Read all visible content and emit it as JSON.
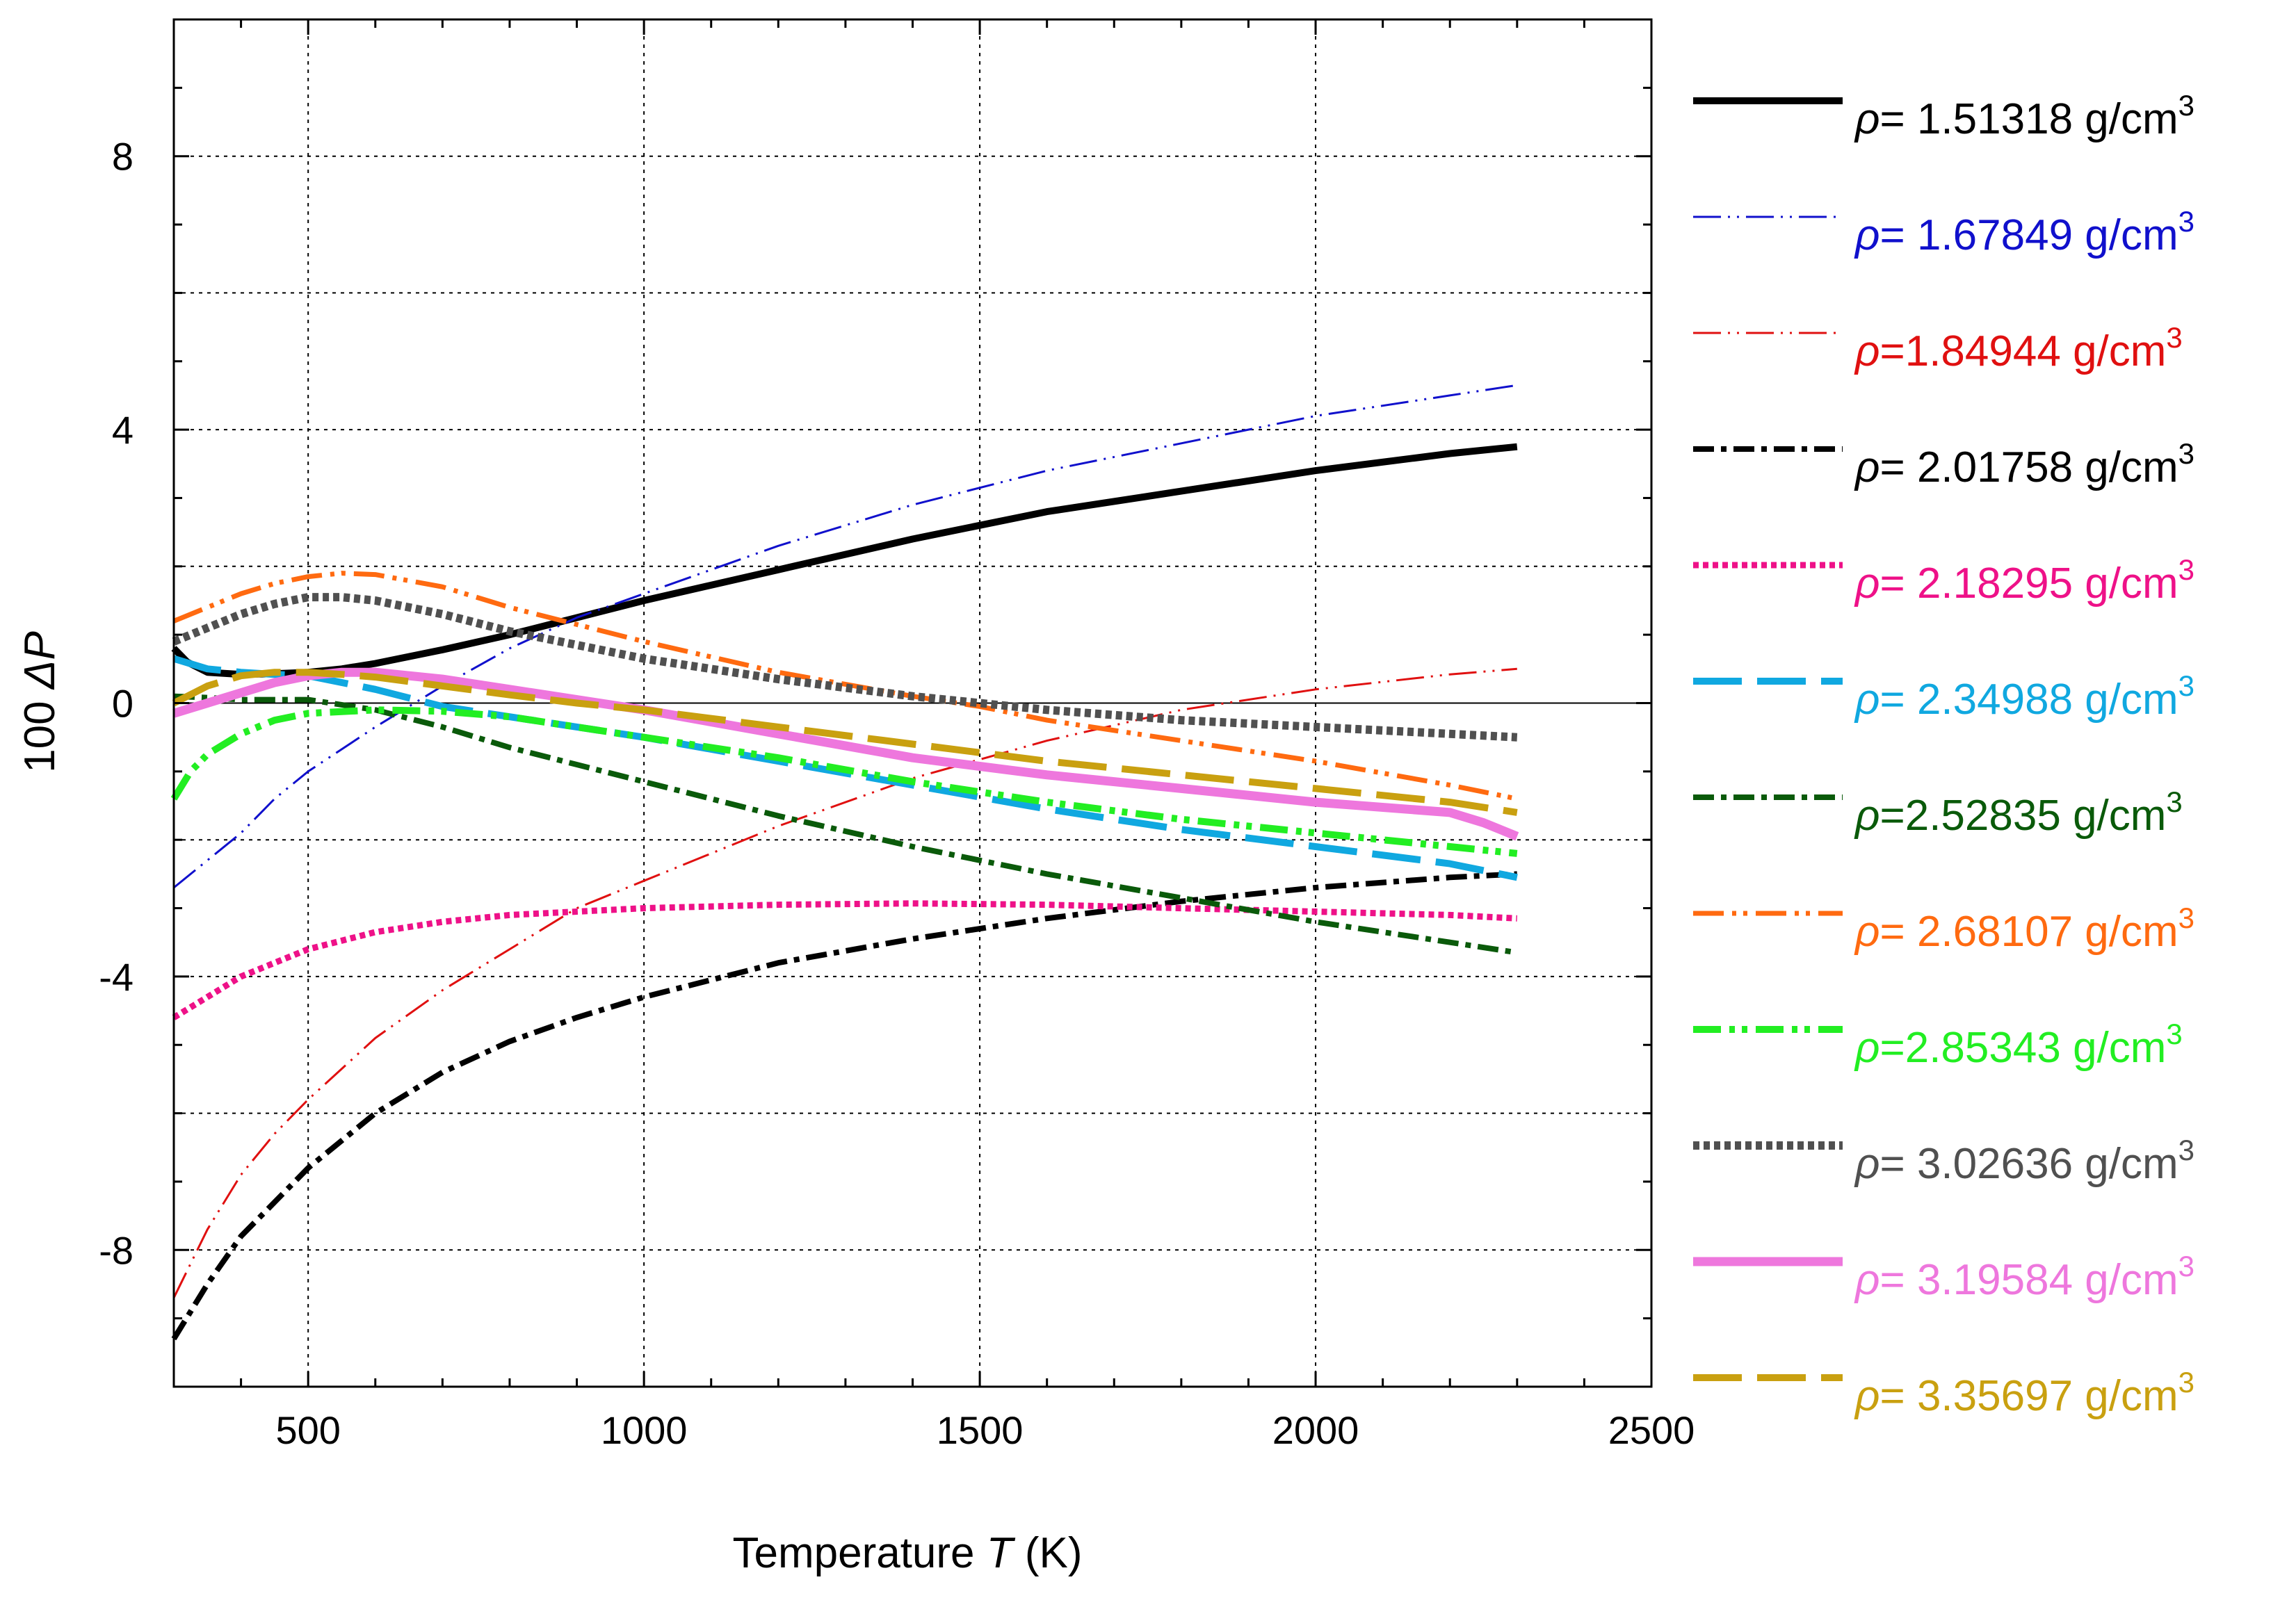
{
  "chart_data": {
    "type": "line",
    "title": "",
    "xlabel": {
      "prefix": "Temperature ",
      "var": "T",
      "suffix": " (K)"
    },
    "ylabel": {
      "prefix": "100 ",
      "var": "ΔP"
    },
    "xlim": [
      300,
      2500
    ],
    "ylim": [
      -10,
      10
    ],
    "xticks": [
      500,
      1000,
      1500,
      2000,
      2500
    ],
    "xtick_labels": [
      "500",
      "1000",
      "1500",
      "2000",
      "2500"
    ],
    "yticks": [
      -8,
      -4,
      0,
      4,
      8
    ],
    "ytick_labels": [
      "-8",
      "-4",
      "0",
      "4",
      "8"
    ],
    "grid": true,
    "legend_position": "right",
    "series": [
      {
        "name": "ρ = 1.51318 g/cm3",
        "symbol": "ρ",
        "label": "= 1.51318 g/cm",
        "sup": "3",
        "color": "#000000",
        "style": "solid",
        "x": [
          300,
          320,
          350,
          400,
          450,
          500,
          550,
          600,
          700,
          800,
          900,
          1000,
          1200,
          1400,
          1600,
          1800,
          2000,
          2200,
          2300
        ],
        "y": [
          0.8,
          0.6,
          0.45,
          0.42,
          0.43,
          0.45,
          0.5,
          0.58,
          0.78,
          1.0,
          1.25,
          1.5,
          1.95,
          2.4,
          2.8,
          3.1,
          3.4,
          3.65,
          3.75
        ]
      },
      {
        "name": "ρ = 1.67849 g/cm3",
        "symbol": "ρ",
        "label": "= 1.67849 g/cm",
        "sup": "3",
        "color": "#1010cc",
        "style": "dashdot-thin",
        "x": [
          300,
          350,
          400,
          450,
          500,
          600,
          700,
          800,
          900,
          1000,
          1200,
          1400,
          1600,
          1800,
          2000,
          2200,
          2300
        ],
        "y": [
          -2.7,
          -2.3,
          -1.9,
          -1.4,
          -1.0,
          -0.35,
          0.25,
          0.8,
          1.25,
          1.6,
          2.3,
          2.9,
          3.4,
          3.8,
          4.2,
          4.5,
          4.65
        ]
      },
      {
        "name": "ρ =1.84944 g/cm3",
        "symbol": "ρ",
        "label": "=1.84944 g/cm",
        "sup": "3",
        "color": "#e01010",
        "style": "dashdot-thin",
        "x": [
          300,
          350,
          400,
          450,
          500,
          600,
          700,
          800,
          900,
          1000,
          1200,
          1400,
          1600,
          1800,
          2000,
          2200,
          2300
        ],
        "y": [
          -8.7,
          -7.7,
          -6.9,
          -6.3,
          -5.8,
          -4.9,
          -4.2,
          -3.6,
          -3.0,
          -2.6,
          -1.8,
          -1.1,
          -0.55,
          -0.1,
          0.2,
          0.42,
          0.5
        ]
      },
      {
        "name": "ρ = 2.01758 g/cm3",
        "symbol": "ρ",
        "label": "= 2.01758 g/cm",
        "sup": "3",
        "color": "#000000",
        "style": "dashdot-thick",
        "x": [
          300,
          350,
          400,
          450,
          500,
          600,
          700,
          800,
          900,
          1000,
          1200,
          1400,
          1600,
          1800,
          2000,
          2200,
          2300
        ],
        "y": [
          -9.3,
          -8.5,
          -7.8,
          -7.3,
          -6.8,
          -6.0,
          -5.4,
          -4.95,
          -4.6,
          -4.3,
          -3.8,
          -3.45,
          -3.15,
          -2.9,
          -2.7,
          -2.55,
          -2.5
        ]
      },
      {
        "name": "ρ = 2.18295 g/cm3",
        "symbol": "ρ",
        "label": "= 2.18295 g/cm",
        "sup": "3",
        "color": "#ee1188",
        "style": "dotted",
        "x": [
          300,
          350,
          400,
          450,
          500,
          600,
          700,
          800,
          900,
          1000,
          1200,
          1400,
          1600,
          1800,
          2000,
          2200,
          2300
        ],
        "y": [
          -4.6,
          -4.3,
          -4.0,
          -3.8,
          -3.6,
          -3.35,
          -3.2,
          -3.1,
          -3.05,
          -3.0,
          -2.95,
          -2.93,
          -2.95,
          -3.0,
          -3.05,
          -3.1,
          -3.15
        ]
      },
      {
        "name": "ρ = 2.34988 g/cm3",
        "symbol": "ρ",
        "label": "= 2.34988 g/cm",
        "sup": "3",
        "color": "#10a8e0",
        "style": "longdash-thick",
        "x": [
          300,
          350,
          400,
          450,
          500,
          600,
          700,
          800,
          900,
          1000,
          1200,
          1400,
          1600,
          1800,
          2000,
          2200,
          2300
        ],
        "y": [
          0.65,
          0.5,
          0.45,
          0.42,
          0.4,
          0.2,
          -0.05,
          -0.2,
          -0.35,
          -0.5,
          -0.85,
          -1.2,
          -1.55,
          -1.85,
          -2.1,
          -2.35,
          -2.55
        ]
      },
      {
        "name": "ρ =2.52835 g/cm3",
        "symbol": "ρ",
        "label": "=2.52835 g/cm",
        "sup": "3",
        "color": "#0a5a0a",
        "style": "dashdot-thick",
        "x": [
          300,
          350,
          400,
          450,
          500,
          600,
          700,
          800,
          900,
          1000,
          1200,
          1400,
          1600,
          1800,
          2000,
          2200,
          2300
        ],
        "y": [
          0.1,
          0.08,
          0.05,
          0.05,
          0.05,
          -0.1,
          -0.35,
          -0.65,
          -0.9,
          -1.15,
          -1.65,
          -2.1,
          -2.5,
          -2.85,
          -3.2,
          -3.5,
          -3.65
        ]
      },
      {
        "name": "ρ = 2.68107 g/cm3",
        "symbol": "ρ",
        "label": "= 2.68107 g/cm",
        "sup": "3",
        "color": "#ff6a10",
        "style": "dashdotdot",
        "x": [
          300,
          350,
          400,
          450,
          500,
          550,
          600,
          700,
          800,
          900,
          1000,
          1200,
          1400,
          1500,
          1600,
          1800,
          2000,
          2200,
          2300
        ],
        "y": [
          1.2,
          1.4,
          1.6,
          1.75,
          1.85,
          1.9,
          1.88,
          1.7,
          1.4,
          1.15,
          0.9,
          0.45,
          0.1,
          -0.05,
          -0.25,
          -0.55,
          -0.85,
          -1.2,
          -1.4
        ]
      },
      {
        "name": "ρ =2.85343 g/cm3",
        "symbol": "ρ",
        "label": "=2.85343 g/cm",
        "sup": "3",
        "color": "#22ee22",
        "style": "dashdotdot-thick",
        "x": [
          300,
          325,
          350,
          400,
          450,
          500,
          600,
          700,
          800,
          900,
          1000,
          1200,
          1400,
          1600,
          1800,
          2000,
          2200,
          2300
        ],
        "y": [
          -1.4,
          -1.0,
          -0.75,
          -0.45,
          -0.25,
          -0.15,
          -0.1,
          -0.12,
          -0.2,
          -0.35,
          -0.5,
          -0.8,
          -1.15,
          -1.45,
          -1.7,
          -1.9,
          -2.1,
          -2.2
        ]
      },
      {
        "name": "ρ = 3.02636 g/cm3",
        "symbol": "ρ",
        "label": "= 3.02636 g/cm",
        "sup": "3",
        "color": "#505050",
        "style": "dotted-thick",
        "x": [
          300,
          350,
          400,
          450,
          500,
          550,
          600,
          700,
          800,
          900,
          1000,
          1200,
          1400,
          1500,
          1600,
          1800,
          2000,
          2200,
          2300
        ],
        "y": [
          0.9,
          1.1,
          1.3,
          1.45,
          1.55,
          1.55,
          1.5,
          1.3,
          1.05,
          0.85,
          0.65,
          0.35,
          0.1,
          0.0,
          -0.1,
          -0.25,
          -0.35,
          -0.45,
          -0.5
        ]
      },
      {
        "name": "ρ = 3.19584 g/cm3",
        "symbol": "ρ",
        "label": "= 3.19584 g/cm",
        "sup": "3",
        "color": "#ee77dd",
        "style": "solid-thick",
        "x": [
          300,
          350,
          400,
          450,
          500,
          550,
          600,
          700,
          800,
          900,
          1000,
          1200,
          1400,
          1600,
          1800,
          2000,
          2200,
          2250,
          2300
        ],
        "y": [
          -0.15,
          0.0,
          0.15,
          0.3,
          0.4,
          0.45,
          0.45,
          0.35,
          0.2,
          0.05,
          -0.1,
          -0.45,
          -0.8,
          -1.05,
          -1.25,
          -1.45,
          -1.6,
          -1.75,
          -1.95
        ]
      },
      {
        "name": "ρ = 3.35697 g/cm3",
        "symbol": "ρ",
        "label": "= 3.35697 g/cm",
        "sup": "3",
        "color": "#c9a010",
        "style": "longdash-thick",
        "x": [
          300,
          350,
          400,
          450,
          500,
          550,
          600,
          700,
          800,
          900,
          1000,
          1200,
          1400,
          1600,
          1800,
          2000,
          2200,
          2300
        ],
        "y": [
          0.0,
          0.25,
          0.4,
          0.45,
          0.45,
          0.42,
          0.38,
          0.25,
          0.12,
          0.0,
          -0.1,
          -0.35,
          -0.6,
          -0.85,
          -1.05,
          -1.25,
          -1.45,
          -1.6
        ]
      }
    ]
  }
}
